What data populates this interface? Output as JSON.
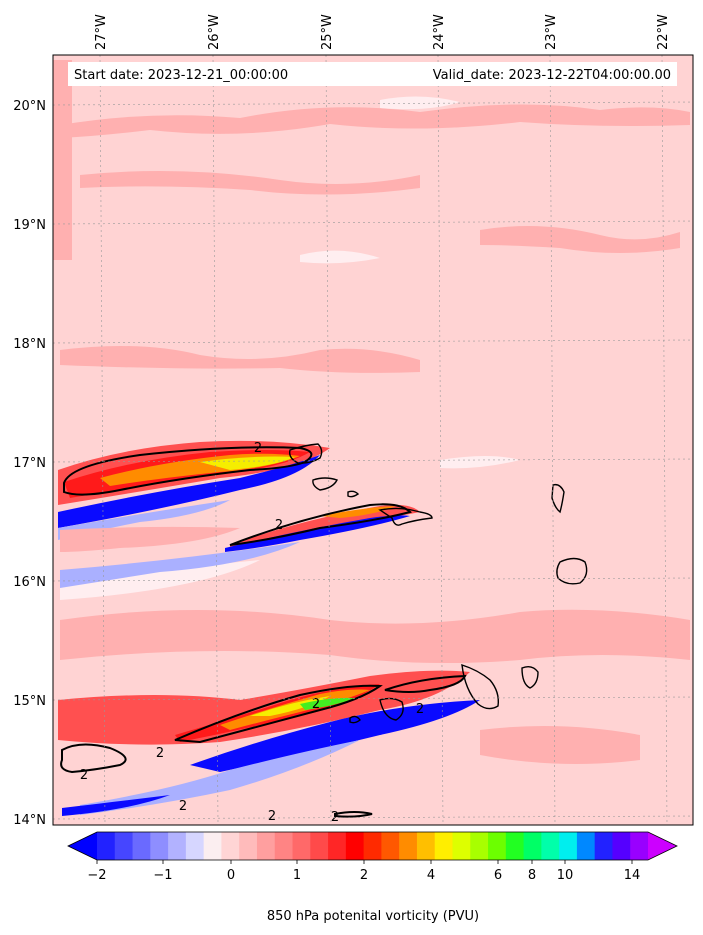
{
  "header": {
    "start_date": "Start date: 2023-12-21_00:00:00",
    "valid_date": "Valid_date: 2023-12-22T04:00:00.00"
  },
  "axes": {
    "lon_labels": [
      "27°W",
      "26°W",
      "25°W",
      "24°W",
      "23°W",
      "22°W"
    ],
    "lat_labels": [
      "20°N",
      "19°N",
      "18°N",
      "17°N",
      "16°N",
      "15°N",
      "14°N"
    ]
  },
  "contour_label": "2",
  "colorbar": {
    "tick_labels": [
      "−2",
      "−1",
      "0",
      "1",
      "2",
      "4",
      "6",
      "8",
      "10",
      "14"
    ],
    "label": "850 hPa potenital vorticity (PVU)",
    "colors": [
      "#0000ff",
      "#2222ff",
      "#4646ff",
      "#6a6aff",
      "#8e8eff",
      "#b2b2ff",
      "#d6d6ff",
      "#fbeef0",
      "#ffd5d5",
      "#ffbbbb",
      "#ff9f9f",
      "#ff8484",
      "#ff6969",
      "#ff4a4a",
      "#ff2626",
      "#ff0000",
      "#ff2a00",
      "#ff5800",
      "#ff8c00",
      "#ffbf00",
      "#ffee00",
      "#ddff00",
      "#a8ff00",
      "#6cff00",
      "#22ff22",
      "#00ff66",
      "#00ffaa",
      "#00eeee",
      "#0088ff",
      "#2222ff",
      "#5500ff",
      "#9900ff",
      "#cc00ff"
    ]
  },
  "map_colors": {
    "background": "#ffd3d3",
    "light": "#ffeef0",
    "pink": "#ffb0b0",
    "red": "#ff5050",
    "deep_red": "#ff1a1a",
    "orange": "#ff8c00",
    "yellow": "#f5ee00",
    "green": "#44ee22",
    "blue": "#0a0aff",
    "light_blue": "#aab0ff"
  }
}
